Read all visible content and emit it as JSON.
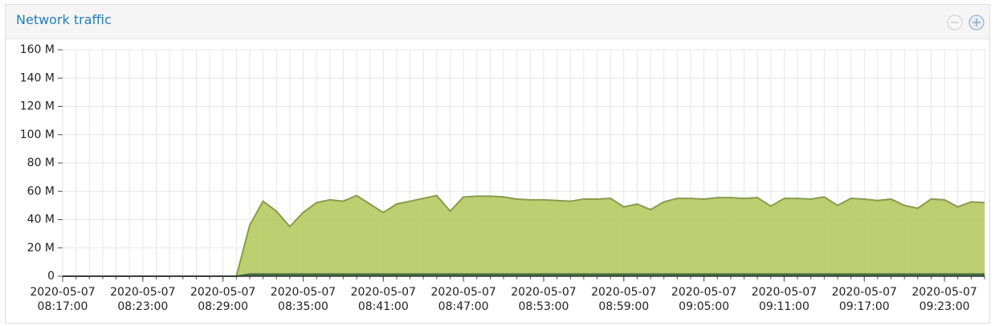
{
  "panel_title": "Network traffic",
  "chart_data": {
    "type": "area",
    "x": [
      "2020-05-07 08:17:00",
      "2020-05-07 08:18:00",
      "2020-05-07 08:19:00",
      "2020-05-07 08:20:00",
      "2020-05-07 08:21:00",
      "2020-05-07 08:22:00",
      "2020-05-07 08:23:00",
      "2020-05-07 08:24:00",
      "2020-05-07 08:25:00",
      "2020-05-07 08:26:00",
      "2020-05-07 08:27:00",
      "2020-05-07 08:28:00",
      "2020-05-07 08:29:00",
      "2020-05-07 08:30:00",
      "2020-05-07 08:31:00",
      "2020-05-07 08:32:00",
      "2020-05-07 08:33:00",
      "2020-05-07 08:34:00",
      "2020-05-07 08:35:00",
      "2020-05-07 08:36:00",
      "2020-05-07 08:37:00",
      "2020-05-07 08:38:00",
      "2020-05-07 08:39:00",
      "2020-05-07 08:40:00",
      "2020-05-07 08:41:00",
      "2020-05-07 08:42:00",
      "2020-05-07 08:43:00",
      "2020-05-07 08:44:00",
      "2020-05-07 08:45:00",
      "2020-05-07 08:46:00",
      "2020-05-07 08:47:00",
      "2020-05-07 08:48:00",
      "2020-05-07 08:49:00",
      "2020-05-07 08:50:00",
      "2020-05-07 08:51:00",
      "2020-05-07 08:52:00",
      "2020-05-07 08:53:00",
      "2020-05-07 08:54:00",
      "2020-05-07 08:55:00",
      "2020-05-07 08:56:00",
      "2020-05-07 08:57:00",
      "2020-05-07 08:58:00",
      "2020-05-07 08:59:00",
      "2020-05-07 09:00:00",
      "2020-05-07 09:01:00",
      "2020-05-07 09:02:00",
      "2020-05-07 09:03:00",
      "2020-05-07 09:04:00",
      "2020-05-07 09:05:00",
      "2020-05-07 09:06:00",
      "2020-05-07 09:07:00",
      "2020-05-07 09:08:00",
      "2020-05-07 09:09:00",
      "2020-05-07 09:10:00",
      "2020-05-07 09:11:00",
      "2020-05-07 09:12:00",
      "2020-05-07 09:13:00",
      "2020-05-07 09:14:00",
      "2020-05-07 09:15:00",
      "2020-05-07 09:16:00",
      "2020-05-07 09:17:00",
      "2020-05-07 09:18:00",
      "2020-05-07 09:19:00",
      "2020-05-07 09:20:00",
      "2020-05-07 09:21:00",
      "2020-05-07 09:22:00",
      "2020-05-07 09:23:00",
      "2020-05-07 09:24:00",
      "2020-05-07 09:25:00",
      "2020-05-07 09:26:00"
    ],
    "series": [
      {
        "color": "#b5cb62",
        "stroke": "#899b4c",
        "values": [
          0,
          0,
          0,
          0,
          0,
          0,
          0,
          0,
          0,
          0,
          0,
          0,
          0,
          0,
          36,
          53,
          46,
          35,
          45,
          52,
          54,
          53,
          57,
          51,
          45,
          51,
          53,
          55,
          57,
          46,
          56,
          56.5,
          56.5,
          56,
          54.5,
          54,
          54,
          53.5,
          53,
          54.5,
          54.5,
          55,
          49,
          51,
          47,
          52.5,
          55,
          55,
          54.5,
          55.5,
          55.5,
          55,
          55.5,
          49.5,
          55,
          55,
          54.5,
          56,
          50,
          55,
          54.5,
          53.5,
          54.5,
          50,
          48,
          54.5,
          54,
          49,
          52.5,
          52
        ]
      },
      {
        "color": "#3f6b3c",
        "stroke": "#3f6b3c",
        "values": [
          0,
          0,
          0,
          0,
          0,
          0,
          0,
          0,
          0,
          0,
          0,
          0,
          0,
          0,
          1.5,
          1.5,
          1.5,
          1.5,
          1.5,
          1.5,
          1.5,
          1.5,
          1.5,
          1.5,
          1.5,
          1.5,
          1.5,
          1.5,
          1.5,
          1.5,
          1.5,
          1.5,
          1.5,
          1.5,
          1.5,
          1.5,
          1.5,
          1.5,
          1.5,
          1.5,
          1.5,
          1.5,
          1.5,
          1.5,
          1.5,
          1.5,
          1.5,
          1.5,
          1.5,
          1.5,
          1.5,
          1.5,
          1.5,
          1.5,
          1.5,
          1.5,
          1.5,
          1.5,
          1.5,
          1.5,
          1.5,
          1.5,
          1.5,
          1.5,
          1.5,
          1.5,
          1.5,
          1.5,
          1.5,
          1.5
        ]
      }
    ],
    "xlim": [
      "2020-05-07 08:17:00",
      "2020-05-07 09:26:00"
    ],
    "xticks": [
      "2020-05-07 08:17:00",
      "2020-05-07 08:23:00",
      "2020-05-07 08:29:00",
      "2020-05-07 08:35:00",
      "2020-05-07 08:41:00",
      "2020-05-07 08:47:00",
      "2020-05-07 08:53:00",
      "2020-05-07 08:59:00",
      "2020-05-07 09:05:00",
      "2020-05-07 09:11:00",
      "2020-05-07 09:17:00",
      "2020-05-07 09:23:00"
    ],
    "ylim": [
      0,
      160
    ],
    "yticks": [
      0,
      {
        "value": 20,
        "label": "20 M"
      },
      {
        "value": 40,
        "label": "40 M"
      },
      {
        "value": 60,
        "label": "60 M"
      },
      {
        "value": 80,
        "label": "80 M"
      },
      {
        "value": 100,
        "label": "100 M"
      },
      {
        "value": 120,
        "label": "120 M"
      },
      {
        "value": 140,
        "label": "140 M"
      },
      {
        "value": 160,
        "label": "160 M"
      }
    ],
    "grid": true
  }
}
